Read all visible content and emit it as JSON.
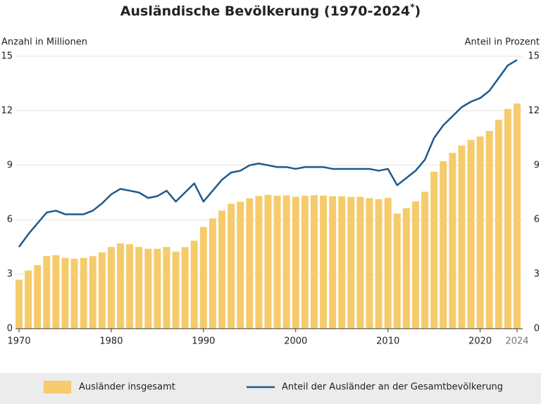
{
  "chart_data": {
    "type": "bar-line",
    "title": [
      "Ausländische Bevölkerung (1970-2024",
      "*",
      ")"
    ],
    "y_label": "Anzahl in Millionen",
    "y2_label": "Anteil in Prozent",
    "x": [
      1970,
      1971,
      1972,
      1973,
      1974,
      1975,
      1976,
      1977,
      1978,
      1979,
      1980,
      1981,
      1982,
      1983,
      1984,
      1985,
      1986,
      1987,
      1988,
      1989,
      1990,
      1991,
      1992,
      1993,
      1994,
      1995,
      1996,
      1997,
      1998,
      1999,
      2000,
      2001,
      2002,
      2003,
      2004,
      2005,
      2006,
      2007,
      2008,
      2009,
      2010,
      2011,
      2012,
      2013,
      2014,
      2015,
      2016,
      2017,
      2018,
      2019,
      2020,
      2021,
      2022,
      2023,
      2024
    ],
    "xlim": [
      1970,
      2024
    ],
    "xticks": [
      1970,
      1980,
      1990,
      2000,
      2010,
      2020,
      2024
    ],
    "xtick_highlight": 2024,
    "series": [
      {
        "name": "Ausländer insgesamt",
        "type": "bar",
        "color": "#f5cb6b",
        "values": [
          2.7,
          3.2,
          3.5,
          4.0,
          4.05,
          3.9,
          3.85,
          3.9,
          4.0,
          4.2,
          4.5,
          4.7,
          4.65,
          4.5,
          4.4,
          4.4,
          4.5,
          4.24,
          4.49,
          4.85,
          5.6,
          6.07,
          6.5,
          6.88,
          6.99,
          7.17,
          7.31,
          7.37,
          7.32,
          7.34,
          7.27,
          7.32,
          7.35,
          7.33,
          7.29,
          7.29,
          7.26,
          7.26,
          7.19,
          7.13,
          7.2,
          6.34,
          6.64,
          7.01,
          7.54,
          8.65,
          9.22,
          9.68,
          10.09,
          10.4,
          10.59,
          10.89,
          11.5,
          12.1,
          12.4
        ]
      },
      {
        "name": "Anteil der Ausländer an der Gesamtbevölkerung",
        "type": "line",
        "axis": "y2",
        "color": "#1f5a8c",
        "values": [
          4.5,
          5.2,
          5.8,
          6.4,
          6.5,
          6.3,
          6.3,
          6.3,
          6.5,
          6.9,
          7.4,
          7.7,
          7.6,
          7.5,
          7.2,
          7.3,
          7.6,
          7.0,
          7.5,
          8.0,
          7.0,
          7.6,
          8.2,
          8.6,
          8.7,
          9.0,
          9.1,
          9.0,
          8.9,
          8.9,
          8.8,
          8.9,
          8.9,
          8.9,
          8.8,
          8.8,
          8.8,
          8.8,
          8.8,
          8.7,
          8.8,
          7.9,
          8.3,
          8.7,
          9.3,
          10.5,
          11.2,
          11.7,
          12.2,
          12.5,
          12.7,
          13.1,
          13.8,
          14.5,
          14.8
        ]
      }
    ],
    "ylim": [
      0,
      15
    ],
    "yticks": [
      0,
      3,
      6,
      9,
      12,
      15
    ],
    "y2lim": [
      0,
      15
    ],
    "y2ticks": [
      0,
      3,
      6,
      9,
      12,
      15
    ],
    "grid": true
  }
}
